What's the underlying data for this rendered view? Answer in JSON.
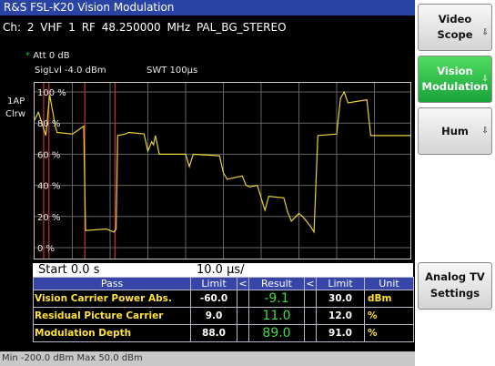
{
  "app": {
    "title": "R&S FSL-K20 Vision Modulation",
    "channel_line": "Ch:  2  VHF 1  RF 48.250000 MHz  PAL_BG_STEREO"
  },
  "settings": {
    "star": "*",
    "att": "Att  0 dB",
    "siglvl": "SigLvl -4.0 dBm",
    "swt": "SWT 100µs",
    "trace_label_1": "1AP",
    "trace_label_2": "Clrw"
  },
  "colors": {
    "trace": "#e8d23a",
    "markers": "#c83232",
    "grid": "#646464",
    "title_bar": "#2a44a6",
    "active_softkey": "#2fbf4a"
  },
  "chart_data": {
    "type": "line",
    "ylim": [
      0,
      100
    ],
    "xlim": [
      0,
      100
    ],
    "y_ticks": [
      "0 %",
      "20 %",
      "40 %",
      "60 %",
      "80 %",
      "100 %"
    ],
    "x_start_label": "Start 0.0 s",
    "x_div_label": "10.0 µs/",
    "marker_lines_x": [
      2.4,
      3.8,
      13.3,
      21.3
    ],
    "series": [
      {
        "x": [
          0,
          1,
          3,
          4,
          5.5,
          6,
          10,
          13,
          13.5,
          19,
          21,
          21.6,
          22,
          24,
          25,
          29,
          30,
          31,
          31.5,
          32,
          33,
          40,
          41,
          42,
          49,
          50,
          51,
          55,
          56,
          57,
          59,
          60,
          61,
          62,
          66,
          67,
          68,
          70,
          71,
          73,
          74,
          75,
          80,
          81,
          82,
          83,
          88,
          89,
          100
        ],
        "values": [
          82,
          87,
          72,
          98,
          78,
          74,
          73,
          78,
          11,
          12,
          10,
          12,
          72,
          73,
          74,
          73,
          62,
          68,
          66,
          72,
          60,
          60,
          52,
          60,
          59,
          48,
          44,
          46,
          40,
          39,
          40,
          32,
          24,
          33,
          32,
          23,
          17,
          22,
          20,
          14,
          10,
          72,
          73,
          96,
          100,
          93,
          95,
          72,
          72
        ]
      }
    ]
  },
  "table": {
    "headers": [
      "Pass",
      "Limit",
      "<",
      "Result",
      "<",
      "Limit",
      "Unit"
    ],
    "rows": [
      {
        "name": "Vision Carrier Power Abs.",
        "low": "-60.0",
        "result": "-9.1",
        "high": "30.0",
        "unit": "dBm"
      },
      {
        "name": "Residual Picture Carrier",
        "low": "9.0",
        "result": "11.0",
        "high": "12.0",
        "unit": "%"
      },
      {
        "name": "Modulation Depth",
        "low": "88.0",
        "result": "89.0",
        "high": "91.0",
        "unit": "%"
      }
    ]
  },
  "status": "Min -200.0 dBm Max 50.0 dBm",
  "softkeys": {
    "video_scope": [
      "Video",
      "Scope"
    ],
    "vision_modulation": [
      "Vision",
      "Modulation"
    ],
    "hum": "Hum",
    "analog_tv_settings": [
      "Analog TV",
      "Settings"
    ],
    "arrow": "⇩"
  }
}
